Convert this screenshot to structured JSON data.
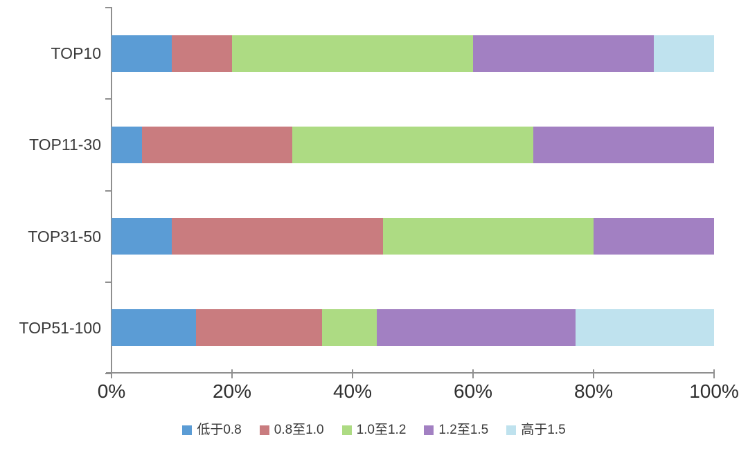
{
  "chart_data": {
    "type": "bar",
    "orientation": "horizontal",
    "stacked": true,
    "title": "",
    "xlabel": "",
    "ylabel": "",
    "grid": false,
    "legend_position": "bottom",
    "axis_color": "#8f8f8f",
    "text_color": "#3a3a3a",
    "xlim": [
      0,
      100
    ],
    "categories": [
      "TOP10",
      "TOP11-30",
      "TOP31-50",
      "TOP51-100"
    ],
    "series": [
      {
        "name": "低于0.8",
        "color": "#5B9CD5",
        "values": [
          10,
          5,
          10,
          14
        ]
      },
      {
        "name": "0.8至1.0",
        "color": "#C97C7F",
        "values": [
          10,
          25,
          35,
          21
        ]
      },
      {
        "name": "1.0至1.2",
        "color": "#ADDB83",
        "values": [
          40,
          40,
          35,
          9
        ]
      },
      {
        "name": "1.2至1.5",
        "color": "#A280C2",
        "values": [
          30,
          30,
          20,
          33
        ]
      },
      {
        "name": "高于1.5",
        "color": "#BFE2EE",
        "values": [
          10,
          0,
          0,
          23
        ]
      }
    ],
    "x_axis": {
      "ticks": [
        "0%",
        "20%",
        "40%",
        "60%",
        "80%",
        "100%"
      ],
      "tick_values": [
        0,
        20,
        40,
        60,
        80,
        100
      ]
    }
  }
}
